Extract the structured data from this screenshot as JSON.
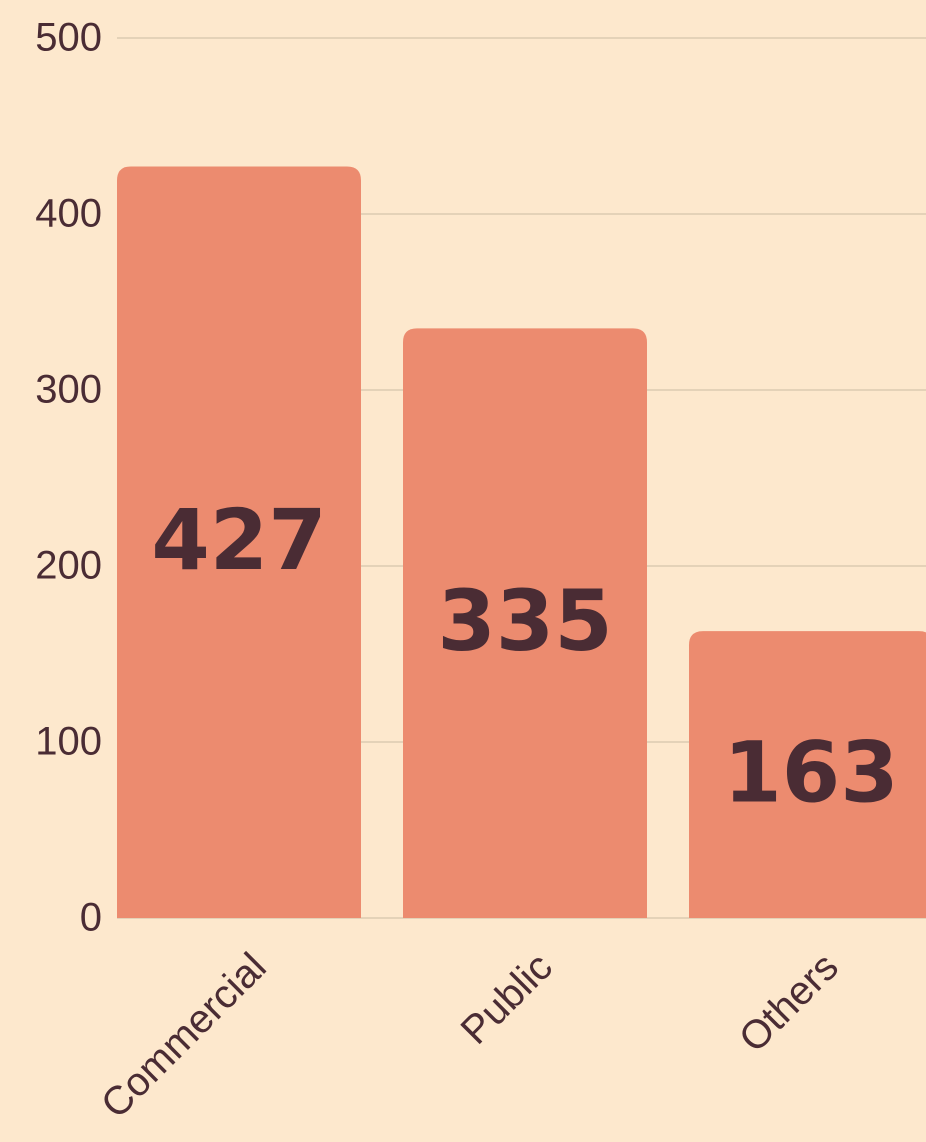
{
  "chart_data": {
    "type": "bar",
    "categories": [
      "Commercial",
      "Public",
      "Others"
    ],
    "values": [
      427,
      335,
      163
    ],
    "color": "#ec8b6f",
    "ylim": [
      0,
      500
    ],
    "yticks": [
      0,
      100,
      200,
      300,
      400,
      500
    ],
    "grid": true
  }
}
